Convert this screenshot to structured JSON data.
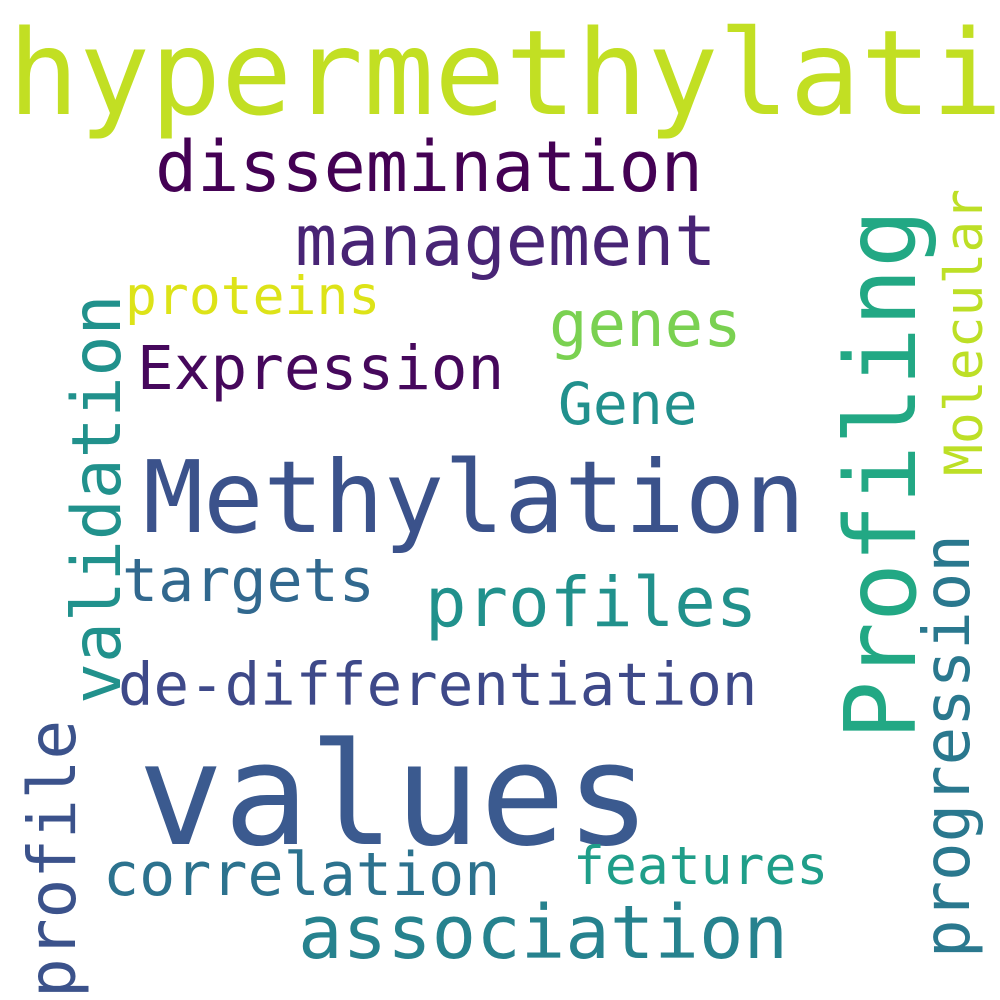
{
  "words": [
    {
      "key": "hypermethylation",
      "text": "hypermethylation",
      "color": "#c2df23"
    },
    {
      "key": "dissemination",
      "text": "dissemination",
      "color": "#440154"
    },
    {
      "key": "management",
      "text": "management",
      "color": "#482475"
    },
    {
      "key": "proteins",
      "text": "proteins",
      "color": "#dde318"
    },
    {
      "key": "genes",
      "text": "genes",
      "color": "#7ad151"
    },
    {
      "key": "Expression",
      "text": "Expression",
      "color": "#46085c"
    },
    {
      "key": "Gene",
      "text": "Gene",
      "color": "#21908d"
    },
    {
      "key": "Methylation",
      "text": "Methylation",
      "color": "#3b528b"
    },
    {
      "key": "targets",
      "text": "targets",
      "color": "#31688e"
    },
    {
      "key": "profiles",
      "text": "profiles",
      "color": "#21918c"
    },
    {
      "key": "de-differentiation",
      "text": "de-differentiation",
      "color": "#3e4989"
    },
    {
      "key": "values",
      "text": "values",
      "color": "#3b5a8f"
    },
    {
      "key": "correlation",
      "text": "correlation",
      "color": "#2c728e"
    },
    {
      "key": "features",
      "text": "features",
      "color": "#1f9e89"
    },
    {
      "key": "association",
      "text": "association",
      "color": "#26828e"
    },
    {
      "key": "validation",
      "text": "validation",
      "color": "#21918c"
    },
    {
      "key": "profile",
      "text": "profile",
      "color": "#3b528b"
    },
    {
      "key": "Profiling",
      "text": "Profiling",
      "color": "#22a884"
    },
    {
      "key": "Molecular",
      "text": "Molecular",
      "color": "#bddf26"
    },
    {
      "key": "progression",
      "text": "progression",
      "color": "#2a788e"
    }
  ]
}
